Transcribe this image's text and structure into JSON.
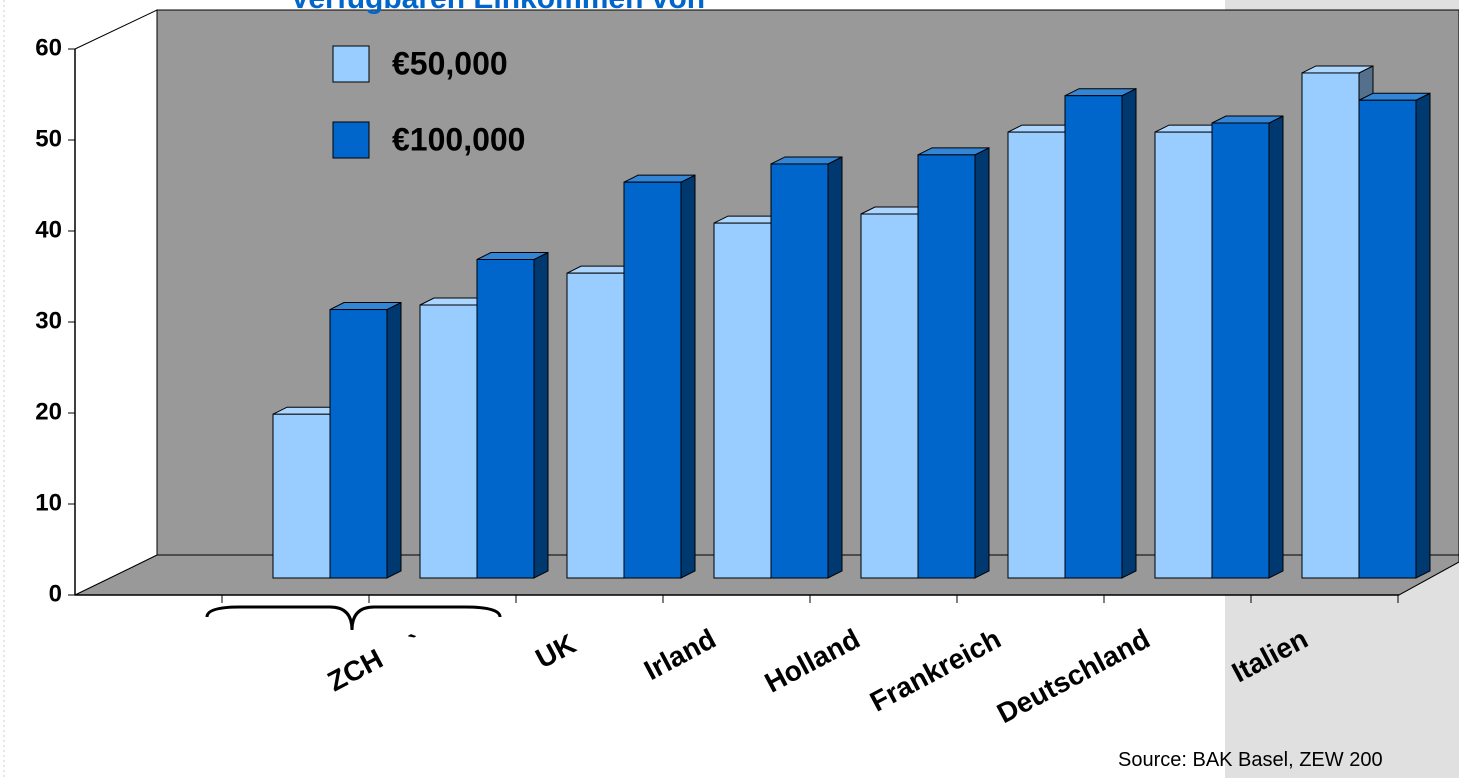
{
  "chart_data": {
    "type": "bar3d",
    "title": "Verfügbaren Einkommen von",
    "source": "Source: BAK Basel, ZEW 200",
    "categories": [
      "ZCH",
      "`",
      "UK",
      "Irland",
      "Holland",
      "Frankreich",
      "Deutschland",
      "Italien"
    ],
    "series": [
      {
        "name": "€50,000",
        "color": "#99ccff",
        "values": [
          18,
          30,
          33.5,
          39,
          40,
          49,
          49,
          55.5
        ]
      },
      {
        "name": "€100,000",
        "color": "#0066cc",
        "values": [
          29.5,
          35,
          43.5,
          45.5,
          46.5,
          53,
          50,
          52.5
        ]
      }
    ],
    "ylim": [
      0,
      60
    ],
    "yticks": [
      0,
      10,
      20,
      30,
      40,
      50,
      60
    ],
    "grid": false
  }
}
